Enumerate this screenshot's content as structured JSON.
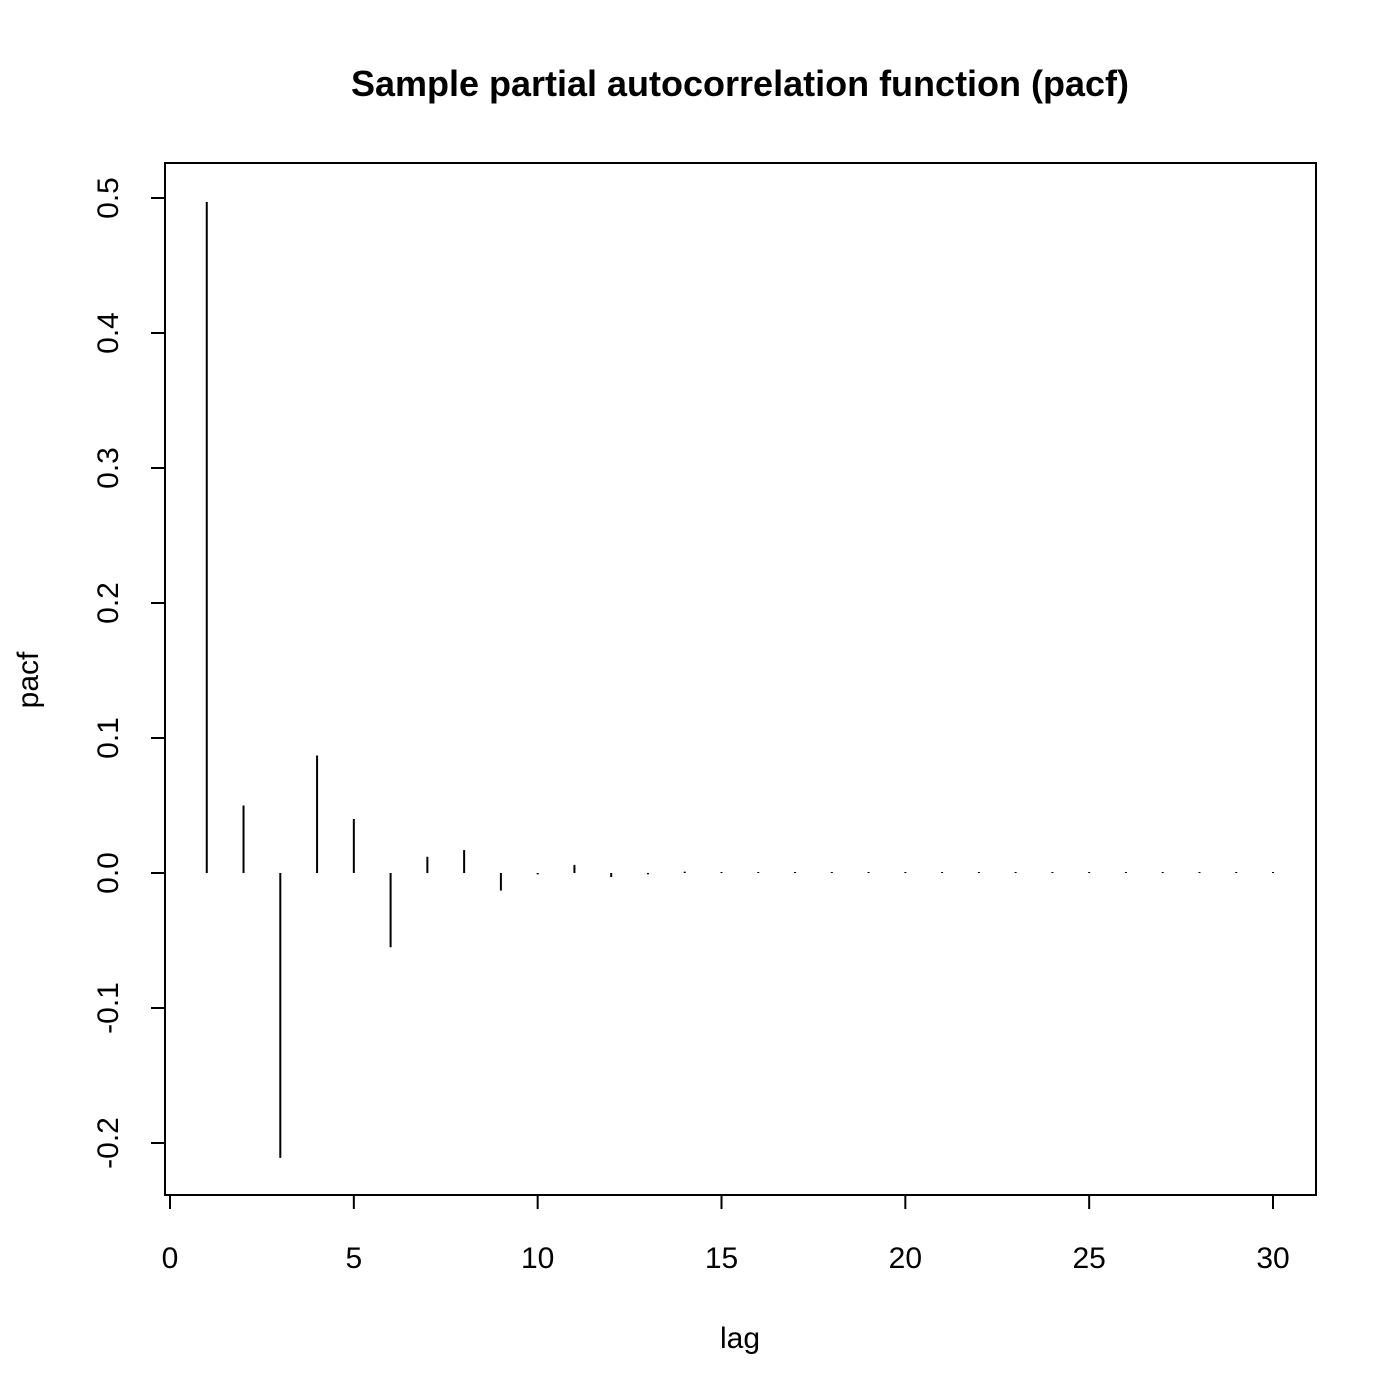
{
  "chart_data": {
    "type": "bar",
    "title": "Sample partial autocorrelation function (pacf)",
    "xlabel": "lag",
    "ylabel": "pacf",
    "xlim": [
      0,
      30
    ],
    "ylim": [
      -0.2,
      0.5
    ],
    "x_ticks": [
      "0",
      "5",
      "10",
      "15",
      "20",
      "25",
      "30"
    ],
    "y_ticks": [
      "-0.2",
      "-0.1",
      "0.0",
      "0.1",
      "0.2",
      "0.3",
      "0.4",
      "0.5"
    ],
    "grid": false,
    "legend": "none",
    "x": [
      1,
      2,
      3,
      4,
      5,
      6,
      7,
      8,
      9,
      10,
      11,
      12,
      13,
      14,
      15,
      16,
      17,
      18,
      19,
      20,
      21,
      22,
      23,
      24,
      25,
      26,
      27,
      28,
      29,
      30
    ],
    "values": [
      0.497,
      0.05,
      -0.211,
      0.087,
      0.04,
      -0.055,
      0.012,
      0.017,
      -0.013,
      -0.001,
      0.006,
      -0.003,
      -0.001,
      0.001,
      -0.0005,
      0.0005,
      -0.0005,
      0.0005,
      -0.0005,
      0.0005,
      -0.0005,
      0.0005,
      -0.0005,
      0.0005,
      -0.0005,
      0.0005,
      -0.0005,
      0.0005,
      -0.0005,
      0.0005
    ],
    "colors": {
      "line": "#000000",
      "background": "#ffffff"
    }
  }
}
